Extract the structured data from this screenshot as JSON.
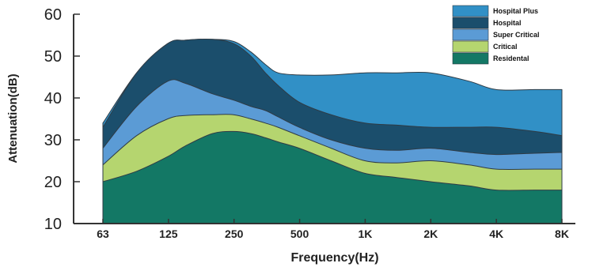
{
  "chart_data": {
    "type": "area",
    "stacked": false,
    "title": "",
    "xlabel": "Frequency(Hz)",
    "ylabel": "Attenuation(dB)",
    "ylim": [
      10,
      60
    ],
    "yticks": [
      "10",
      "20",
      "30",
      "40",
      "50",
      "60"
    ],
    "categories": [
      "63",
      "125",
      "250",
      "500",
      "1K",
      "2K",
      "4K",
      "8K"
    ],
    "grid": false,
    "legend_position": "top-right",
    "series": [
      {
        "name": "Hospital Plus",
        "color": "#3190c6",
        "x": [
          63,
          90,
          125,
          150,
          200,
          250,
          300,
          350,
          400,
          500,
          700,
          1000,
          1400,
          2000,
          3000,
          4000,
          6000,
          8000
        ],
        "values": [
          34,
          46,
          53,
          53.8,
          54,
          53.5,
          51,
          48,
          46,
          45.5,
          45.5,
          46,
          46,
          46,
          44,
          42,
          42,
          42
        ]
      },
      {
        "name": "Hospital",
        "color": "#1b4e6c",
        "x": [
          63,
          90,
          125,
          150,
          200,
          250,
          300,
          350,
          400,
          500,
          700,
          1000,
          1400,
          2000,
          3000,
          4000,
          6000,
          8000
        ],
        "values": [
          33,
          46,
          53,
          53.8,
          54,
          53,
          50,
          46,
          43,
          39,
          36,
          34,
          33.5,
          33,
          33,
          33,
          32,
          31
        ]
      },
      {
        "name": "Super Critical",
        "color": "#5b9bd5",
        "x": [
          63,
          90,
          125,
          150,
          200,
          250,
          300,
          350,
          400,
          500,
          700,
          1000,
          1400,
          2000,
          3000,
          4000,
          6000,
          8000
        ],
        "values": [
          28,
          38,
          44,
          43.5,
          41,
          39.5,
          38,
          37,
          35.5,
          33,
          30,
          28,
          27.5,
          28,
          27,
          26.5,
          26.8,
          27
        ]
      },
      {
        "name": "Critical",
        "color": "#b5d56f",
        "x": [
          63,
          90,
          125,
          150,
          200,
          250,
          300,
          350,
          400,
          500,
          700,
          1000,
          1400,
          2000,
          3000,
          4000,
          6000,
          8000
        ],
        "values": [
          24,
          31,
          35,
          35.8,
          36,
          36,
          35,
          34,
          33,
          31,
          28,
          25,
          24.5,
          25,
          24,
          23,
          23,
          23
        ]
      },
      {
        "name": "Residental",
        "color": "#137865",
        "x": [
          63,
          90,
          125,
          150,
          200,
          250,
          300,
          350,
          400,
          500,
          700,
          1000,
          1400,
          2000,
          3000,
          4000,
          6000,
          8000
        ],
        "values": [
          20,
          22.5,
          26,
          28.5,
          31.5,
          32,
          31.5,
          30.5,
          29.5,
          28,
          25,
          22,
          21,
          20,
          19,
          18,
          18,
          18
        ]
      }
    ]
  }
}
